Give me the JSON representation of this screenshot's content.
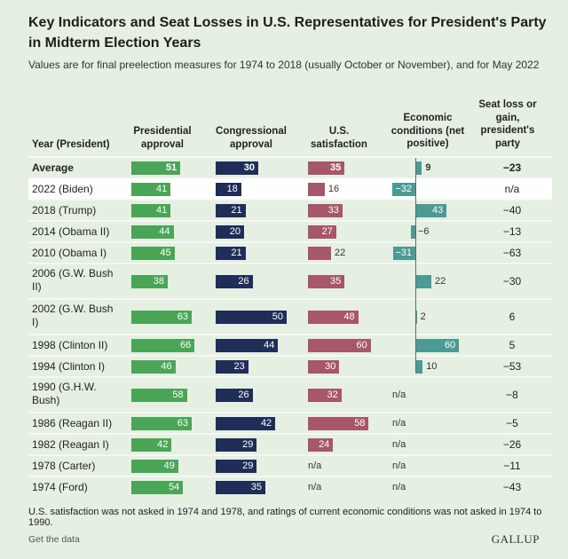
{
  "title": "Key Indicators and Seat Losses in U.S. Representatives for President's Party in Midterm Election Years",
  "subtitle": "Values are for final preelection measures for 1974 to 2018 (usually October or November), and for May 2022",
  "footnote": "U.S. satisfaction was not asked in 1974 and 1978, and ratings of current economic conditions was not asked in 1974 to 1990.",
  "get_data": "Get the data",
  "logo": "GALLUP",
  "chart_data": {
    "type": "table",
    "columns": [
      "Year (President)",
      "Presidential approval",
      "Congressional approval",
      "U.S. satisfaction",
      "Economic conditions (net positive)",
      "Seat loss or gain, president's party"
    ],
    "colors": {
      "presidential": "#4aa557",
      "congressional": "#1f2d58",
      "satisfaction": "#a65769",
      "economic": "#4b9a94"
    },
    "na_label": "n/a",
    "rows": [
      {
        "label": "Average",
        "pres": 51,
        "cong": 30,
        "sat": 35,
        "econ": 9,
        "seat": "−23",
        "bold": true
      },
      {
        "label": "2022 (Biden)",
        "pres": 41,
        "cong": 18,
        "sat": 16,
        "econ": -32,
        "seat": "n/a",
        "highlight": true
      },
      {
        "label": "2018 (Trump)",
        "pres": 41,
        "cong": 21,
        "sat": 33,
        "econ": 43,
        "seat": "−40"
      },
      {
        "label": "2014 (Obama II)",
        "pres": 44,
        "cong": 20,
        "sat": 27,
        "econ": -6,
        "seat": "−13"
      },
      {
        "label": "2010 (Obama I)",
        "pres": 45,
        "cong": 21,
        "sat": 22,
        "econ": -31,
        "seat": "−63"
      },
      {
        "label": "2006 (G.W. Bush II)",
        "pres": 38,
        "cong": 26,
        "sat": 35,
        "econ": 22,
        "seat": "−30",
        "tall": true
      },
      {
        "label": "2002 (G.W. Bush I)",
        "pres": 63,
        "cong": 50,
        "sat": 48,
        "econ": 2,
        "seat": "6",
        "tall": true
      },
      {
        "label": "1998 (Clinton II)",
        "pres": 66,
        "cong": 44,
        "sat": 60,
        "econ": 60,
        "seat": "5"
      },
      {
        "label": "1994 (Clinton I)",
        "pres": 46,
        "cong": 23,
        "sat": 30,
        "econ": 10,
        "seat": "−53"
      },
      {
        "label": "1990 (G.H.W. Bush)",
        "pres": 58,
        "cong": 26,
        "sat": 32,
        "econ": null,
        "seat": "−8",
        "tall": true
      },
      {
        "label": "1986 (Reagan II)",
        "pres": 63,
        "cong": 42,
        "sat": 58,
        "econ": null,
        "seat": "−5"
      },
      {
        "label": "1982 (Reagan I)",
        "pres": 42,
        "cong": 29,
        "sat": 24,
        "econ": null,
        "seat": "−26"
      },
      {
        "label": "1978 (Carter)",
        "pres": 49,
        "cong": 29,
        "sat": null,
        "econ": null,
        "seat": "−11"
      },
      {
        "label": "1974 (Ford)",
        "pres": 54,
        "cong": 35,
        "sat": null,
        "econ": null,
        "seat": "−43"
      }
    ]
  }
}
